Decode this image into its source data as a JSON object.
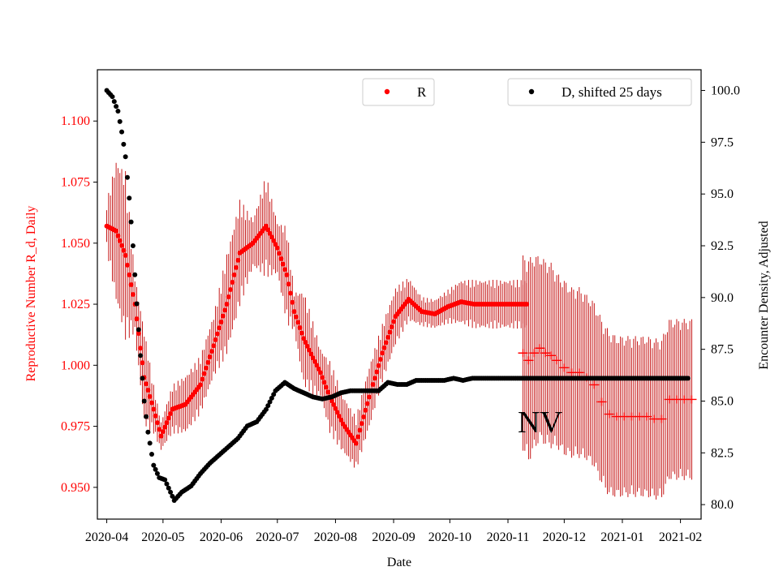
{
  "chart_data": {
    "type": "scatter",
    "title": "",
    "xlabel": "Date",
    "ylabel_left": "Reproductive Number R_d, Daily",
    "ylabel_right": "Encounter Density, Adjusted",
    "annotation": "NV",
    "x_tick_labels": [
      "2020-04",
      "2020-05",
      "2020-06",
      "2020-07",
      "2020-08",
      "2020-09",
      "2020-10",
      "2020-11",
      "2020-12",
      "2021-01",
      "2021-02"
    ],
    "x_range_days": [
      -5,
      317
    ],
    "y_left": {
      "ylim": [
        0.937,
        1.121
      ],
      "ticks": [
        0.95,
        0.975,
        1.0,
        1.025,
        1.05,
        1.075,
        1.1
      ],
      "tick_labels": [
        "0.950",
        "0.975",
        "1.000",
        "1.025",
        "1.050",
        "1.075",
        "1.100"
      ]
    },
    "y_right": {
      "ylim": [
        79.3,
        101.0
      ],
      "ticks": [
        80.0,
        82.5,
        85.0,
        87.5,
        90.0,
        92.5,
        95.0,
        97.5,
        100.0
      ],
      "tick_labels": [
        "80.0",
        "82.5",
        "85.0",
        "87.5",
        "90.0",
        "92.5",
        "95.0",
        "97.5",
        "100.0"
      ]
    },
    "colors": {
      "r_series": "#ff0000",
      "r_errorbar": "#c00000",
      "d_series": "#000000",
      "left_axis_text": "#ff0000"
    },
    "legend": [
      {
        "label": "R",
        "color": "#ff0000",
        "position": "top-center"
      },
      {
        "label": "D, shifted 25 days",
        "color": "#000000",
        "position": "top-right"
      }
    ],
    "series_R": {
      "name": "R",
      "axis": "left",
      "note": "days since 2020-04-01; dense dots until ~day 226, sparse '+' markers afterwards",
      "days": [
        0,
        5,
        10,
        15,
        20,
        25,
        29,
        35,
        42,
        50,
        57,
        64,
        71,
        78,
        85,
        91,
        96,
        100,
        105,
        110,
        114,
        119,
        126,
        133,
        140,
        147,
        154,
        161,
        168,
        175,
        182,
        189,
        196,
        203,
        210,
        217,
        224
      ],
      "values": [
        1.057,
        1.055,
        1.045,
        1.025,
        0.995,
        0.982,
        0.971,
        0.982,
        0.984,
        0.992,
        1.008,
        1.025,
        1.046,
        1.05,
        1.057,
        1.048,
        1.037,
        1.022,
        1.011,
        1.003,
        0.997,
        0.987,
        0.976,
        0.968,
        0.987,
        1.005,
        1.02,
        1.027,
        1.022,
        1.021,
        1.024,
        1.026,
        1.025,
        1.025,
        1.025,
        1.025,
        1.025
      ],
      "errors": [
        0.01,
        0.03,
        0.035,
        0.012,
        0.02,
        0.01,
        0.006,
        0.01,
        0.012,
        0.012,
        0.013,
        0.021,
        0.022,
        0.01,
        0.021,
        0.011,
        0.02,
        0.008,
        0.02,
        0.015,
        0.01,
        0.015,
        0.012,
        0.011,
        0.013,
        0.012,
        0.012,
        0.009,
        0.006,
        0.006,
        0.007,
        0.009,
        0.01,
        0.01,
        0.01,
        0.01,
        0.01
      ],
      "sparse_days": [
        222,
        225,
        228,
        231,
        234,
        237,
        240,
        244,
        248,
        252,
        256,
        260,
        264,
        268,
        272,
        276,
        280,
        284,
        288,
        292,
        296,
        300,
        304,
        308,
        312
      ],
      "sparse_values": [
        1.005,
        1.002,
        1.005,
        1.007,
        1.005,
        1.004,
        1.002,
        0.999,
        0.997,
        0.997,
        0.995,
        0.992,
        0.985,
        0.98,
        0.979,
        0.979,
        0.979,
        0.979,
        0.979,
        0.978,
        0.978,
        0.986,
        0.986,
        0.986,
        0.986
      ],
      "sparse_errors": [
        0.04,
        0.042,
        0.04,
        0.038,
        0.038,
        0.038,
        0.036,
        0.036,
        0.035,
        0.035,
        0.034,
        0.034,
        0.034,
        0.034,
        0.033,
        0.033,
        0.033,
        0.033,
        0.033,
        0.033,
        0.033,
        0.033,
        0.033,
        0.033,
        0.033
      ]
    },
    "series_D": {
      "name": "D, shifted 25 days",
      "axis": "right",
      "days": [
        0,
        3,
        6,
        8,
        10,
        12,
        14,
        16,
        18,
        20,
        22,
        25,
        28,
        31,
        34,
        36,
        38,
        40,
        45,
        50,
        55,
        60,
        65,
        70,
        75,
        80,
        85,
        90,
        95,
        100,
        105,
        110,
        115,
        120,
        125,
        130,
        135,
        140,
        145,
        150,
        155,
        160,
        165,
        170,
        175,
        180,
        185,
        190,
        195,
        200,
        205,
        210,
        215,
        220,
        225,
        230,
        240,
        250,
        260,
        270,
        280,
        290,
        300,
        310
      ],
      "values": [
        100.0,
        99.7,
        99.0,
        98.0,
        96.8,
        94.8,
        92.5,
        89.7,
        87.2,
        85.0,
        83.5,
        81.9,
        81.3,
        81.2,
        80.6,
        80.2,
        80.4,
        80.6,
        80.9,
        81.5,
        82.0,
        82.4,
        82.8,
        83.2,
        83.8,
        84.0,
        84.6,
        85.5,
        85.9,
        85.6,
        85.4,
        85.2,
        85.1,
        85.2,
        85.4,
        85.5,
        85.5,
        85.5,
        85.5,
        85.9,
        85.8,
        85.8,
        86.0,
        86.0,
        86.0,
        86.0,
        86.1,
        86.0,
        86.1,
        86.1,
        86.1,
        86.1,
        86.1,
        86.1,
        86.1,
        86.1,
        86.1,
        86.1,
        86.1,
        86.1,
        86.1,
        86.1,
        86.1,
        86.1
      ]
    }
  }
}
